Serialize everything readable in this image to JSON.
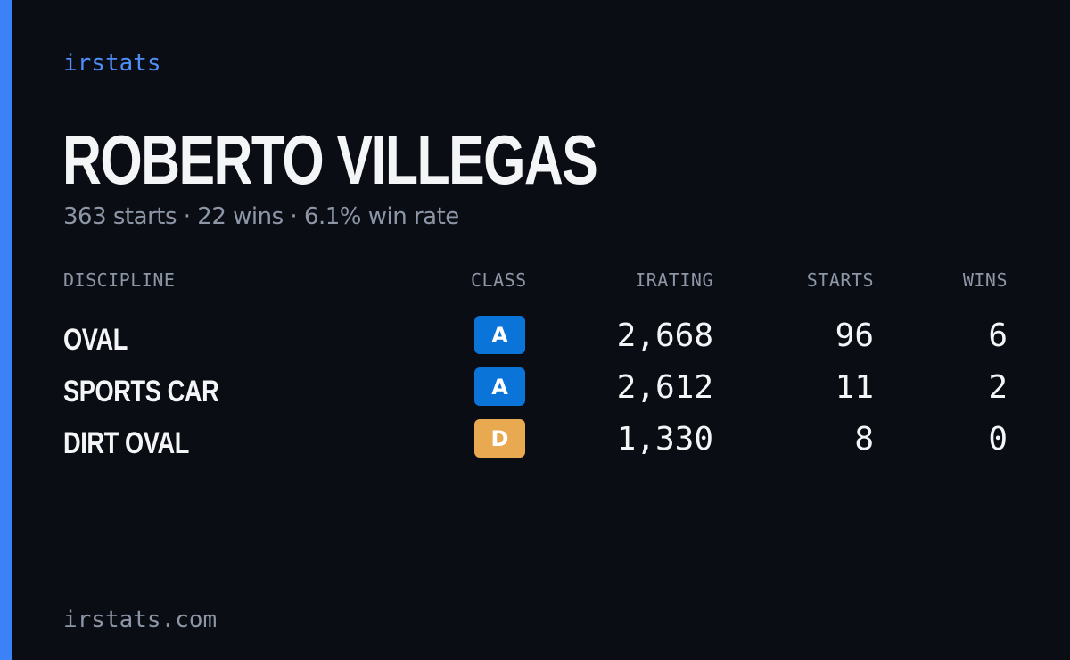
{
  "brand": "irstats",
  "driver": {
    "name": "ROBERTO VILLEGAS",
    "summary": "363 starts · 22 wins · 6.1% win rate"
  },
  "table": {
    "headers": {
      "discipline": "DISCIPLINE",
      "class": "CLASS",
      "irating": "IRATING",
      "starts": "STARTS",
      "wins": "WINS"
    },
    "rows": [
      {
        "discipline": "OVAL",
        "class": "A",
        "class_color": "#0a74d9",
        "irating": "2,668",
        "starts": "96",
        "wins": "6"
      },
      {
        "discipline": "SPORTS CAR",
        "class": "A",
        "class_color": "#0a74d9",
        "irating": "2,612",
        "starts": "11",
        "wins": "2"
      },
      {
        "discipline": "DIRT OVAL",
        "class": "D",
        "class_color": "#e8a951",
        "irating": "1,330",
        "starts": "8",
        "wins": "0"
      }
    ]
  },
  "footer": "irstats.com",
  "colors": {
    "background": "#0a0d14",
    "accent": "#3b82f6",
    "brand": "#4f8df7",
    "muted_text": "#8d96a6",
    "primary_text": "#f4f5f7"
  }
}
